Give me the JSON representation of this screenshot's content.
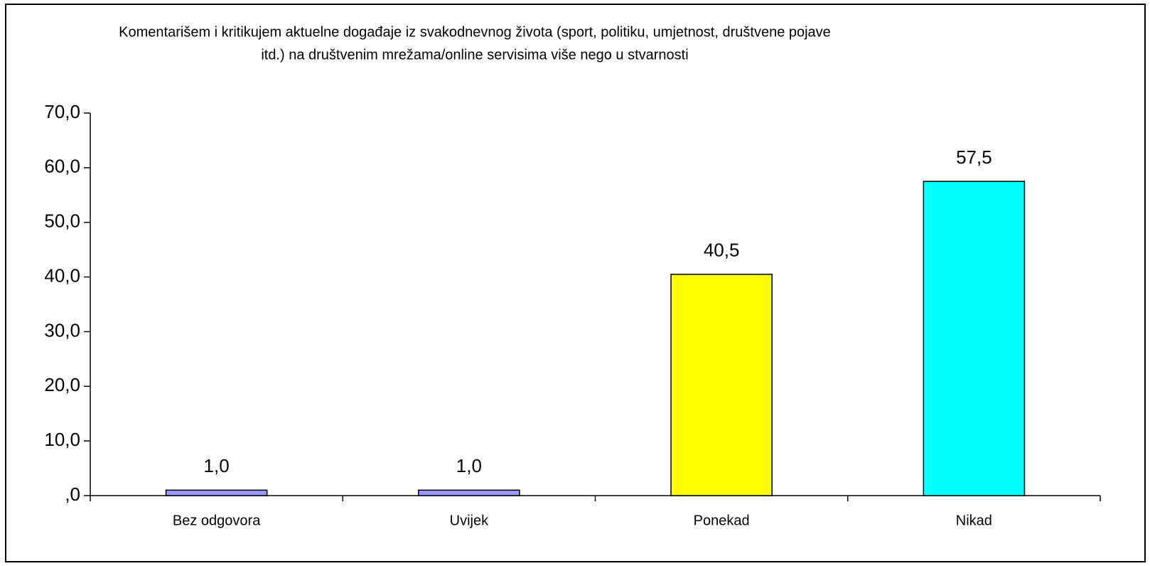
{
  "chart_data": {
    "type": "bar",
    "title": [
      "Komentarišem i kritikujem aktuelne događaje iz svakodnevnog života (sport, politiku, umjetnost, društvene pojave",
      "itd.) na društvenim mrežama/online servisima više nego u stvarnosti"
    ],
    "categories": [
      "Bez odgovora",
      "Uvijek",
      "Ponekad",
      "Nikad"
    ],
    "values": [
      1.0,
      1.0,
      40.5,
      57.5
    ],
    "value_labels": [
      "1,0",
      "1,0",
      "40,5",
      "57,5"
    ],
    "colors": [
      "#9999ff",
      "#9999ff",
      "#ffff00",
      "#00ffff"
    ],
    "ylim": [
      0,
      70
    ],
    "yticks": [
      {
        "value": 0,
        "label": ",0"
      },
      {
        "value": 10,
        "label": "10,0"
      },
      {
        "value": 20,
        "label": "20,0"
      },
      {
        "value": 30,
        "label": "30,0"
      },
      {
        "value": 40,
        "label": "40,0"
      },
      {
        "value": 50,
        "label": "50,0"
      },
      {
        "value": 60,
        "label": "60,0"
      },
      {
        "value": 70,
        "label": "70,0"
      }
    ],
    "grid": false
  }
}
